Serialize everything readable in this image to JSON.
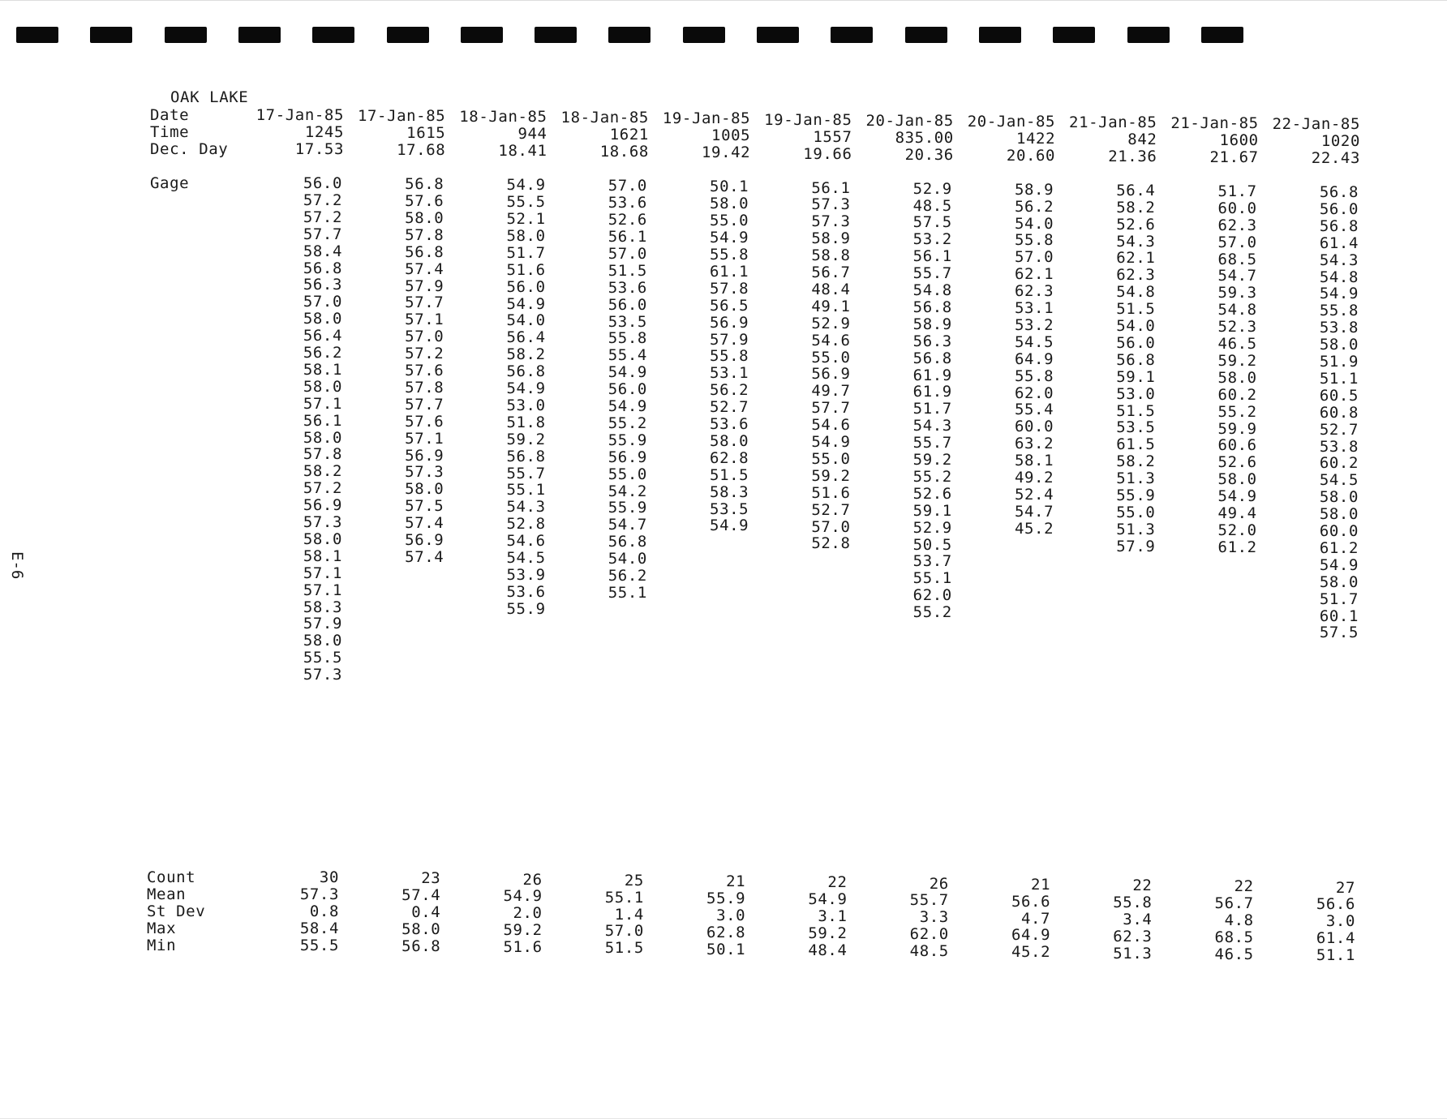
{
  "title": "OAK LAKE",
  "page_label": "E-6",
  "row_labels": {
    "date": "Date",
    "time": "Time",
    "dec_day": "Dec. Day",
    "gage": "Gage"
  },
  "stat_labels": {
    "count": "Count",
    "mean": "Mean",
    "stdev": "St Dev",
    "max": "Max",
    "min": "Min"
  },
  "columns": [
    {
      "date": "17-Jan-85",
      "time": "1245",
      "dec_day": "17.53",
      "gage": [
        "56.0",
        "57.2",
        "57.2",
        "57.7",
        "58.4",
        "56.8",
        "56.3",
        "57.0",
        "58.0",
        "56.4",
        "56.2",
        "58.1",
        "58.0",
        "57.1",
        "56.1",
        "58.0",
        "57.8",
        "58.2",
        "57.2",
        "56.9",
        "57.3",
        "58.0",
        "58.1",
        "57.1",
        "57.1",
        "58.3",
        "57.9",
        "58.0",
        "55.5",
        "57.3"
      ],
      "count": "30",
      "mean": "57.3",
      "stdev": "0.8",
      "max": "58.4",
      "min": "55.5"
    },
    {
      "date": "17-Jan-85",
      "time": "1615",
      "dec_day": "17.68",
      "gage": [
        "56.8",
        "57.6",
        "58.0",
        "57.8",
        "56.8",
        "57.4",
        "57.9",
        "57.7",
        "57.1",
        "57.0",
        "57.2",
        "57.6",
        "57.8",
        "57.7",
        "57.6",
        "57.1",
        "56.9",
        "57.3",
        "58.0",
        "57.5",
        "57.4",
        "56.9",
        "57.4"
      ],
      "count": "23",
      "mean": "57.4",
      "stdev": "0.4",
      "max": "58.0",
      "min": "56.8"
    },
    {
      "date": "18-Jan-85",
      "time": "944",
      "dec_day": "18.41",
      "gage": [
        "54.9",
        "55.5",
        "52.1",
        "58.0",
        "51.7",
        "51.6",
        "56.0",
        "54.9",
        "54.0",
        "56.4",
        "58.2",
        "56.8",
        "54.9",
        "53.0",
        "51.8",
        "59.2",
        "56.8",
        "55.7",
        "55.1",
        "54.3",
        "52.8",
        "54.6",
        "54.5",
        "53.9",
        "53.6",
        "55.9"
      ],
      "count": "26",
      "mean": "54.9",
      "stdev": "2.0",
      "max": "59.2",
      "min": "51.6"
    },
    {
      "date": "18-Jan-85",
      "time": "1621",
      "dec_day": "18.68",
      "gage": [
        "57.0",
        "53.6",
        "52.6",
        "56.1",
        "57.0",
        "51.5",
        "53.6",
        "56.0",
        "53.5",
        "55.8",
        "55.4",
        "54.9",
        "56.0",
        "54.9",
        "55.2",
        "55.9",
        "56.9",
        "55.0",
        "54.2",
        "55.9",
        "54.7",
        "56.8",
        "54.0",
        "56.2",
        "55.1"
      ],
      "count": "25",
      "mean": "55.1",
      "stdev": "1.4",
      "max": "57.0",
      "min": "51.5"
    },
    {
      "date": "19-Jan-85",
      "time": "1005",
      "dec_day": "19.42",
      "gage": [
        "50.1",
        "58.0",
        "55.0",
        "54.9",
        "55.8",
        "61.1",
        "57.8",
        "56.5",
        "56.9",
        "57.9",
        "55.8",
        "53.1",
        "56.2",
        "52.7",
        "53.6",
        "58.0",
        "62.8",
        "51.5",
        "58.3",
        "53.5",
        "54.9"
      ],
      "count": "21",
      "mean": "55.9",
      "stdev": "3.0",
      "max": "62.8",
      "min": "50.1"
    },
    {
      "date": "19-Jan-85",
      "time": "1557",
      "dec_day": "19.66",
      "gage": [
        "56.1",
        "57.3",
        "57.3",
        "58.9",
        "58.8",
        "56.7",
        "48.4",
        "49.1",
        "52.9",
        "54.6",
        "55.0",
        "56.9",
        "49.7",
        "57.7",
        "54.6",
        "54.9",
        "55.0",
        "59.2",
        "51.6",
        "52.7",
        "57.0",
        "52.8"
      ],
      "count": "22",
      "mean": "54.9",
      "stdev": "3.1",
      "max": "59.2",
      "min": "48.4"
    },
    {
      "date": "20-Jan-85",
      "time": "835.00",
      "dec_day": "20.36",
      "gage": [
        "52.9",
        "48.5",
        "57.5",
        "53.2",
        "56.1",
        "55.7",
        "54.8",
        "56.8",
        "58.9",
        "56.3",
        "56.8",
        "61.9",
        "61.9",
        "51.7",
        "54.3",
        "55.7",
        "59.2",
        "55.2",
        "52.6",
        "59.1",
        "52.9",
        "50.5",
        "53.7",
        "55.1",
        "62.0",
        "55.2"
      ],
      "count": "26",
      "mean": "55.7",
      "stdev": "3.3",
      "max": "62.0",
      "min": "48.5"
    },
    {
      "date": "20-Jan-85",
      "time": "1422",
      "dec_day": "20.60",
      "gage": [
        "58.9",
        "56.2",
        "54.0",
        "55.8",
        "57.0",
        "62.1",
        "62.3",
        "53.1",
        "53.2",
        "54.5",
        "64.9",
        "55.8",
        "62.0",
        "55.4",
        "60.0",
        "63.2",
        "58.1",
        "49.2",
        "52.4",
        "54.7",
        "45.2"
      ],
      "count": "21",
      "mean": "56.6",
      "stdev": "4.7",
      "max": "64.9",
      "min": "45.2"
    },
    {
      "date": "21-Jan-85",
      "time": "842",
      "dec_day": "21.36",
      "gage": [
        "56.4",
        "58.2",
        "52.6",
        "54.3",
        "62.1",
        "62.3",
        "54.8",
        "51.5",
        "54.0",
        "56.0",
        "56.8",
        "59.1",
        "53.0",
        "51.5",
        "53.5",
        "61.5",
        "58.2",
        "51.3",
        "55.9",
        "55.0",
        "51.3",
        "57.9"
      ],
      "count": "22",
      "mean": "55.8",
      "stdev": "3.4",
      "max": "62.3",
      "min": "51.3"
    },
    {
      "date": "21-Jan-85",
      "time": "1600",
      "dec_day": "21.67",
      "gage": [
        "51.7",
        "60.0",
        "62.3",
        "57.0",
        "68.5",
        "54.7",
        "59.3",
        "54.8",
        "52.3",
        "46.5",
        "59.2",
        "58.0",
        "60.2",
        "55.2",
        "59.9",
        "60.6",
        "52.6",
        "58.0",
        "54.9",
        "49.4",
        "52.0",
        "61.2"
      ],
      "count": "22",
      "mean": "56.7",
      "stdev": "4.8",
      "max": "68.5",
      "min": "46.5"
    },
    {
      "date": "22-Jan-85",
      "time": "1020",
      "dec_day": "22.43",
      "gage": [
        "56.8",
        "56.0",
        "56.8",
        "61.4",
        "54.3",
        "54.8",
        "54.9",
        "55.8",
        "53.8",
        "58.0",
        "51.9",
        "51.1",
        "60.5",
        "60.8",
        "52.7",
        "53.8",
        "60.2",
        "54.5",
        "58.0",
        "58.0",
        "60.0",
        "61.2",
        "54.9",
        "58.0",
        "51.7",
        "60.1",
        "57.5"
      ],
      "count": "27",
      "mean": "56.6",
      "stdev": "3.0",
      "max": "61.4",
      "min": "51.1"
    }
  ]
}
